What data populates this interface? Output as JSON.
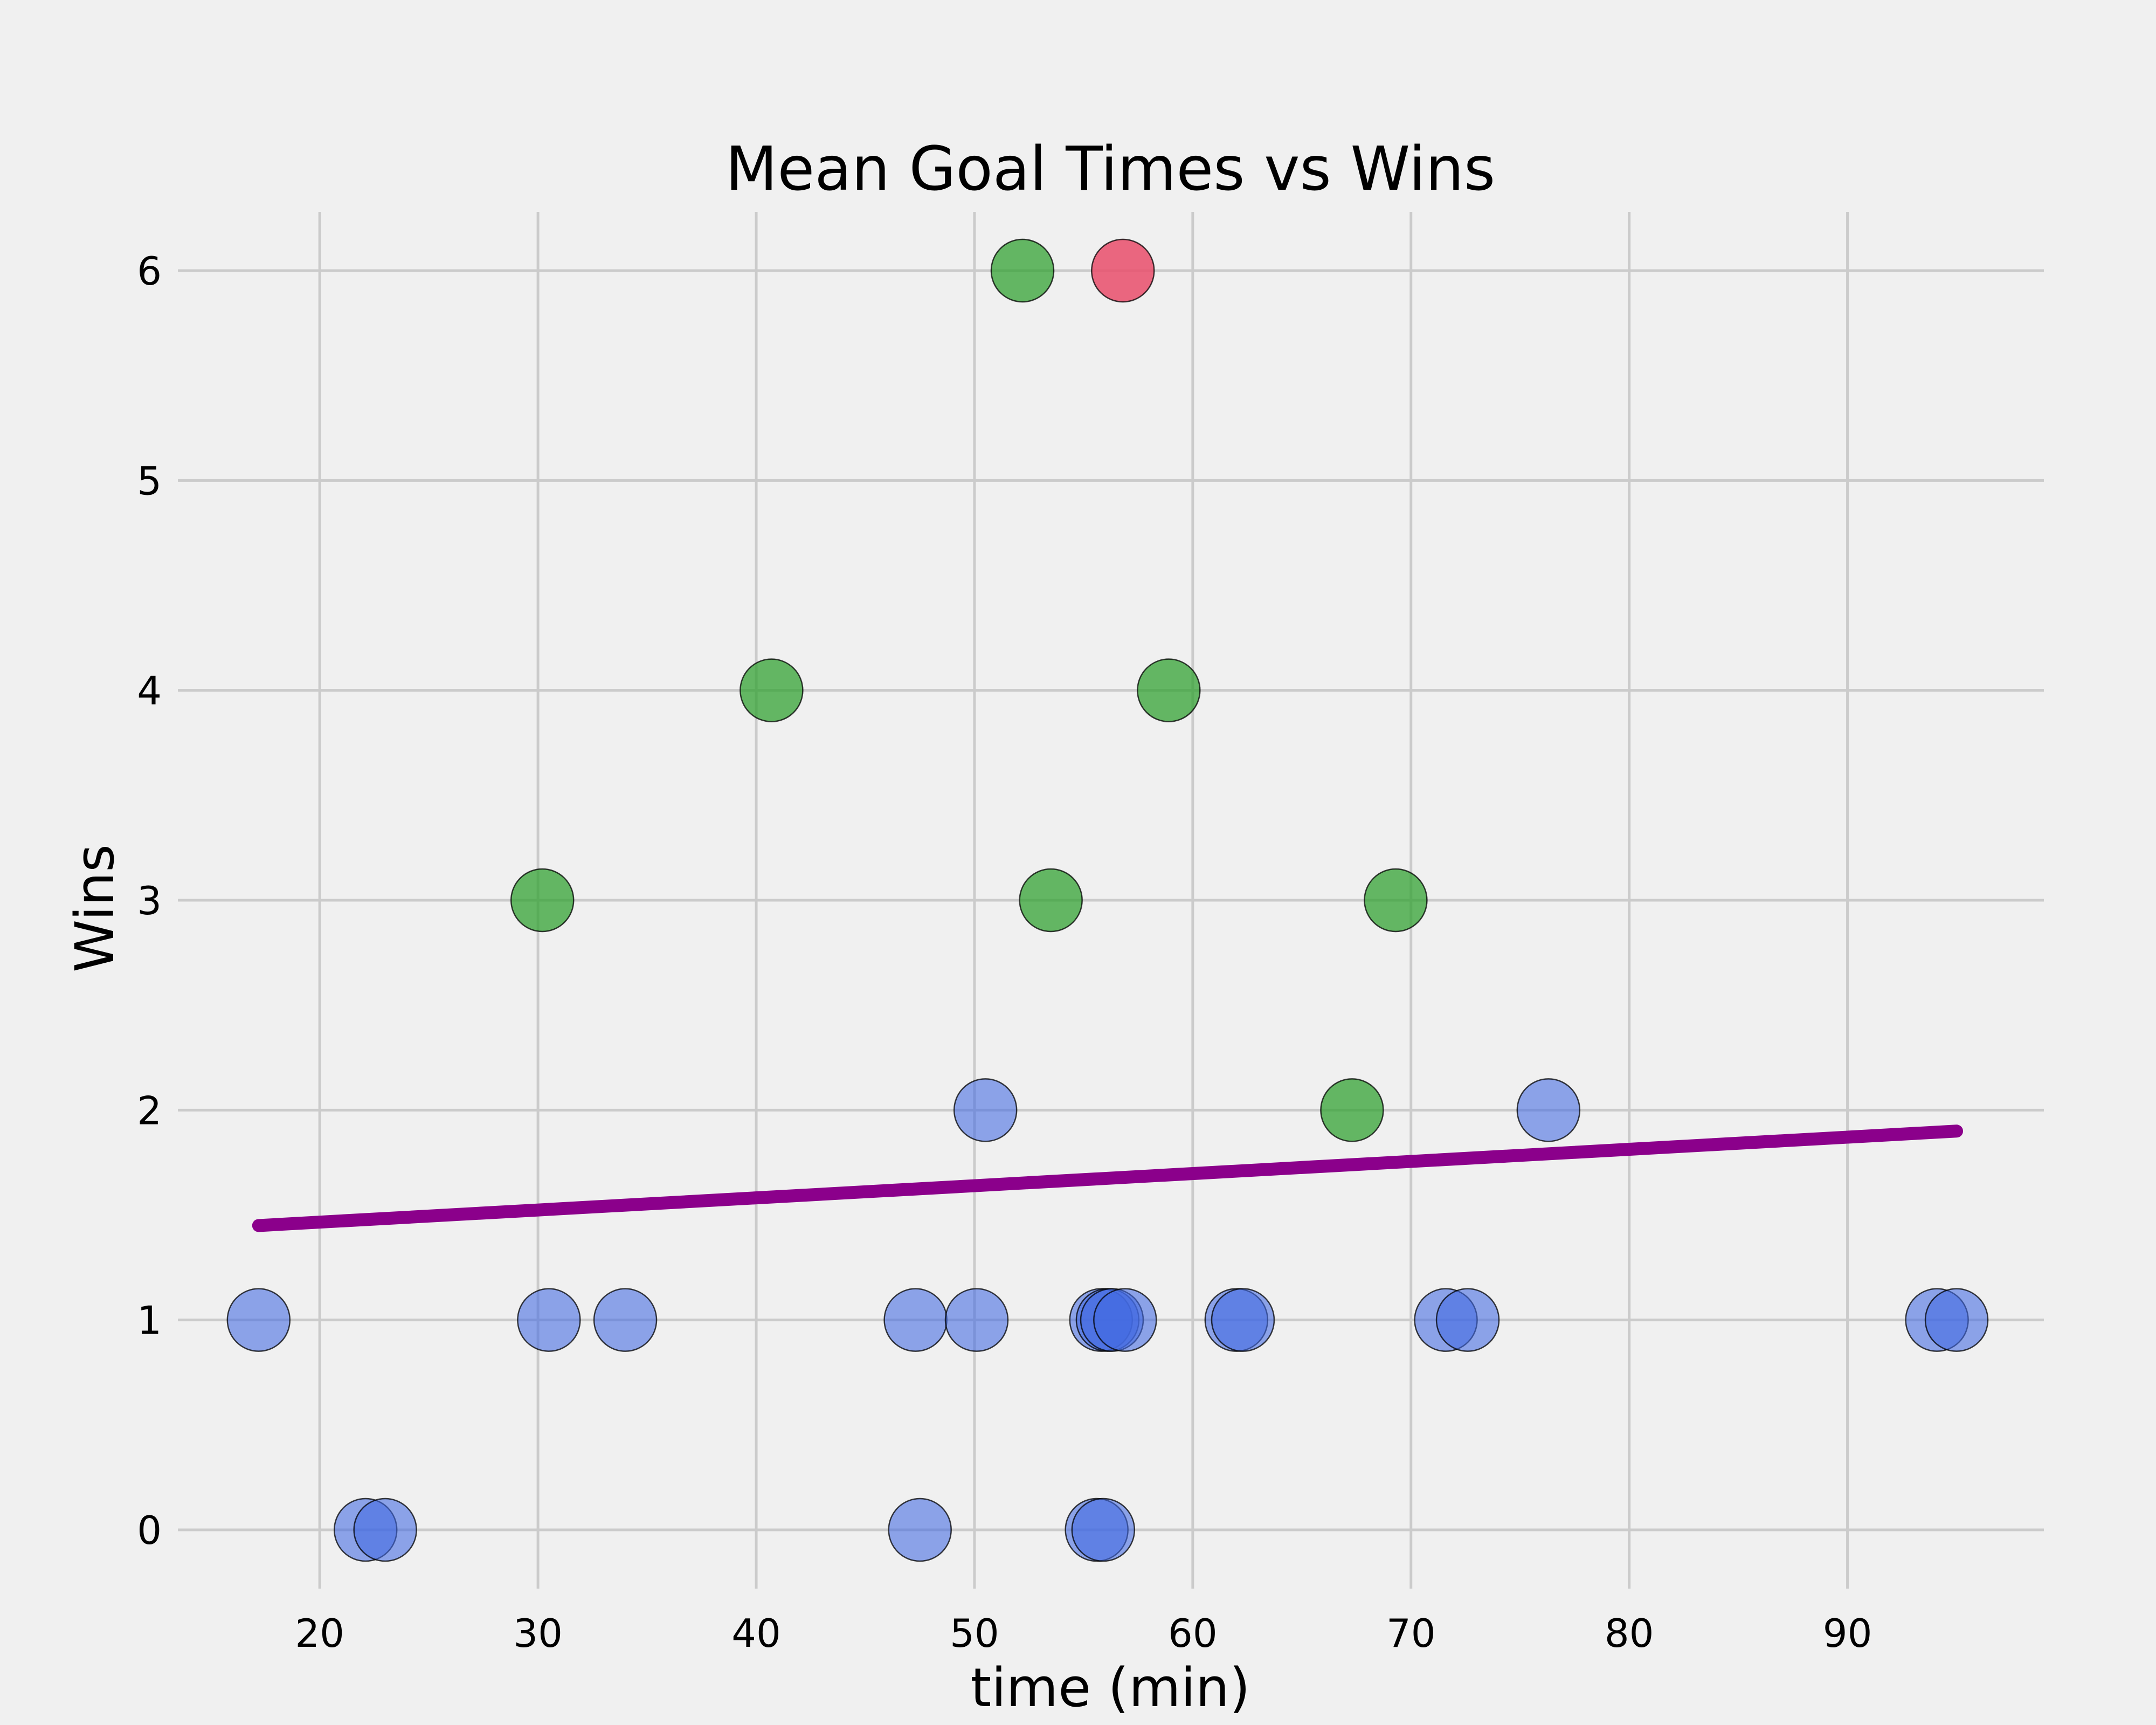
{
  "chart_data": {
    "type": "scatter",
    "title": "Mean Goal Times vs Wins",
    "xlabel": "time (min)",
    "ylabel": "Wins",
    "xlim": [
      13.5,
      99
    ],
    "ylim": [
      -0.28,
      6.28
    ],
    "x_ticks": [
      20,
      30,
      40,
      50,
      60,
      70,
      80,
      90
    ],
    "y_ticks": [
      0,
      1,
      2,
      3,
      4,
      5,
      6
    ],
    "grid": true,
    "colors": {
      "background": "#f0f0f0",
      "grid": "#cbcbcb",
      "trend": "#8b008b",
      "low_wins": "#4169e1",
      "mid_wins": "#2ca02c",
      "top_wins": "#e8526e"
    },
    "series": [
      {
        "color": "#4169e1",
        "opacity": 0.58,
        "points": [
          {
            "x": 17.2,
            "y": 1
          },
          {
            "x": 22.1,
            "y": 0
          },
          {
            "x": 23.0,
            "y": 0
          },
          {
            "x": 30.5,
            "y": 1
          },
          {
            "x": 34.0,
            "y": 1
          },
          {
            "x": 47.3,
            "y": 1
          },
          {
            "x": 47.5,
            "y": 0
          },
          {
            "x": 50.1,
            "y": 1
          },
          {
            "x": 50.5,
            "y": 2
          },
          {
            "x": 55.6,
            "y": 0
          },
          {
            "x": 55.9,
            "y": 0
          },
          {
            "x": 55.8,
            "y": 1
          },
          {
            "x": 56.1,
            "y": 1
          },
          {
            "x": 56.3,
            "y": 1
          },
          {
            "x": 56.9,
            "y": 1
          },
          {
            "x": 62.0,
            "y": 1
          },
          {
            "x": 62.3,
            "y": 1
          },
          {
            "x": 71.6,
            "y": 1
          },
          {
            "x": 72.6,
            "y": 1
          },
          {
            "x": 76.3,
            "y": 2
          },
          {
            "x": 94.1,
            "y": 1
          },
          {
            "x": 95.0,
            "y": 1
          }
        ]
      },
      {
        "color": "#2ca02c",
        "opacity": 0.72,
        "points": [
          {
            "x": 30.2,
            "y": 3
          },
          {
            "x": 40.7,
            "y": 4
          },
          {
            "x": 52.2,
            "y": 6
          },
          {
            "x": 53.5,
            "y": 3
          },
          {
            "x": 58.9,
            "y": 4
          },
          {
            "x": 67.3,
            "y": 2
          },
          {
            "x": 69.3,
            "y": 3
          }
        ]
      },
      {
        "color": "#e8526e",
        "opacity": 0.88,
        "points": [
          {
            "x": 56.8,
            "y": 6
          }
        ]
      }
    ],
    "trend_line": {
      "color": "#8b008b",
      "x": [
        17.2,
        95.0
      ],
      "y": [
        1.45,
        1.9
      ]
    }
  }
}
